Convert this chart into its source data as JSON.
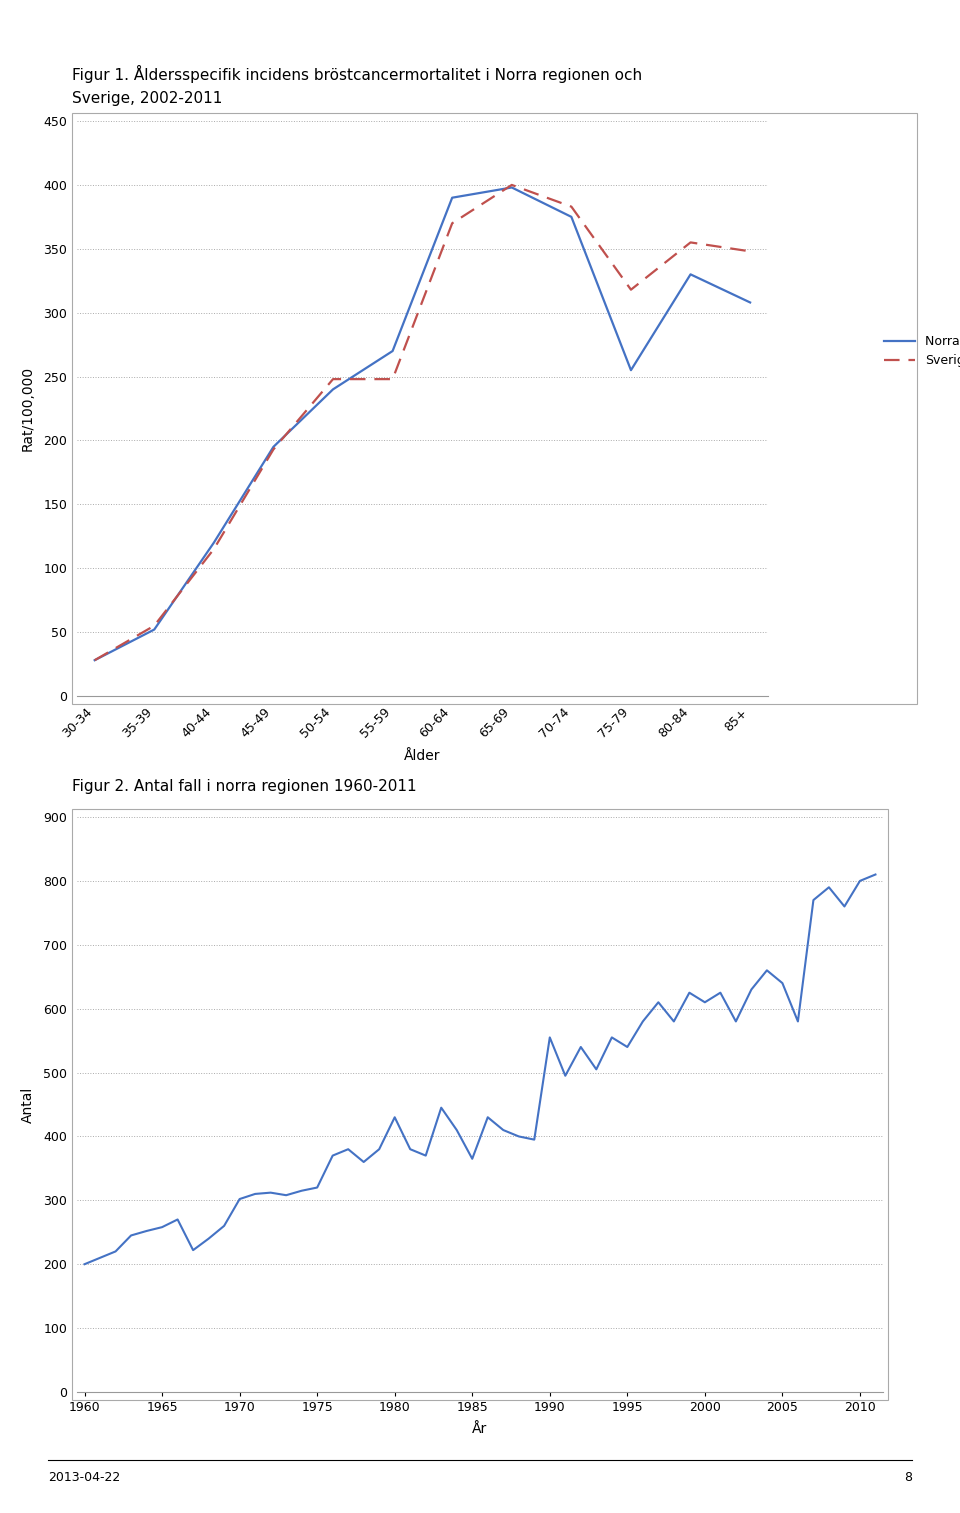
{
  "fig1_title_line1": "Figur 1. Åldersspecifik incidens bröstcancermortalitet i Norra regionen och",
  "fig1_title_line2": "Sverige, 2002-2011",
  "fig2_title": "Figur 2. Antal fall i norra regionen 1960-2011",
  "fig1_xlabel": "Ålder",
  "fig1_ylabel": "Rat/100,000",
  "fig2_xlabel": "År",
  "fig2_ylabel": "Antal",
  "age_categories": [
    "30-34",
    "35-39",
    "40-44",
    "45-49",
    "50-54",
    "55-59",
    "60-64",
    "65-69",
    "70-74",
    "75-79",
    "80-84",
    "85+"
  ],
  "norra_values": [
    28,
    52,
    120,
    195,
    240,
    270,
    390,
    398,
    375,
    255,
    330,
    308
  ],
  "sverige_values": [
    28,
    55,
    115,
    193,
    248,
    248,
    370,
    400,
    383,
    318,
    355,
    348
  ],
  "norra_color": "#4472C4",
  "sverige_color": "#C0504D",
  "fig1_legend_labels": [
    "Norra regionen",
    "Sverige"
  ],
  "fig1_ylim": [
    0,
    450
  ],
  "fig1_yticks": [
    0,
    50,
    100,
    150,
    200,
    250,
    300,
    350,
    400,
    450
  ],
  "fig2_ylim": [
    0,
    900
  ],
  "fig2_yticks": [
    0,
    100,
    200,
    300,
    400,
    500,
    600,
    700,
    800,
    900
  ],
  "fig2_xticks": [
    1960,
    1965,
    1970,
    1975,
    1980,
    1985,
    1990,
    1995,
    2000,
    2005,
    2010
  ],
  "fig2_years": [
    1960,
    1961,
    1962,
    1963,
    1964,
    1965,
    1966,
    1967,
    1968,
    1969,
    1970,
    1971,
    1972,
    1973,
    1974,
    1975,
    1976,
    1977,
    1978,
    1979,
    1980,
    1981,
    1982,
    1983,
    1984,
    1985,
    1986,
    1987,
    1988,
    1989,
    1990,
    1991,
    1992,
    1993,
    1994,
    1995,
    1996,
    1997,
    1998,
    1999,
    2000,
    2001,
    2002,
    2003,
    2004,
    2005,
    2006,
    2007,
    2008,
    2009,
    2010,
    2011
  ],
  "fig2_values": [
    200,
    210,
    220,
    245,
    252,
    258,
    270,
    222,
    240,
    260,
    302,
    310,
    312,
    308,
    315,
    320,
    370,
    380,
    360,
    380,
    430,
    380,
    370,
    445,
    410,
    365,
    430,
    410,
    400,
    395,
    555,
    495,
    540,
    505,
    555,
    540,
    580,
    610,
    580,
    625,
    610,
    625,
    580,
    630,
    660,
    640,
    580,
    770,
    790,
    760,
    800,
    810
  ],
  "footer_date": "2013-04-22",
  "footer_page": "8",
  "background_color": "#FFFFFF",
  "grid_color": "#AAAAAA",
  "fig2_line_color": "#4472C4",
  "box_edge_color": "#AAAAAA"
}
